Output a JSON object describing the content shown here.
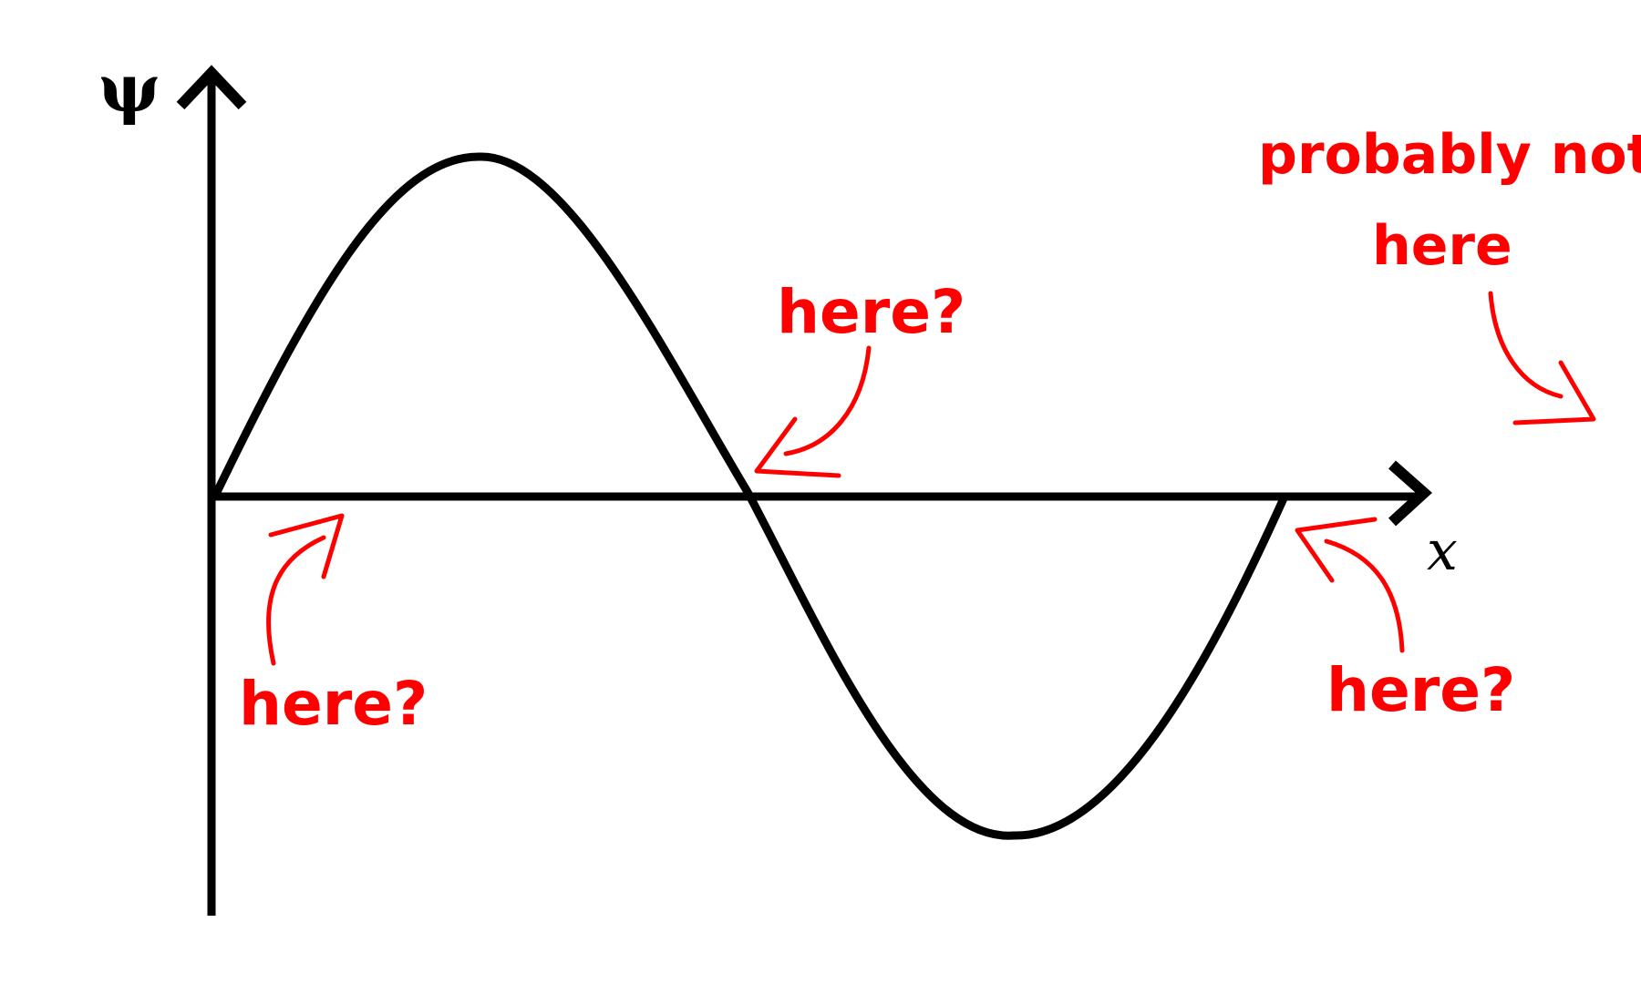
{
  "axes": {
    "y_label": "ψ",
    "x_label": "x"
  },
  "annotations": {
    "left_node": "here?",
    "middle_node": "here?",
    "right_node": "here?",
    "outside_line1": "probably not",
    "outside_line2": "here"
  },
  "colors": {
    "curve": "#000000",
    "annotation": "#ff0000"
  }
}
